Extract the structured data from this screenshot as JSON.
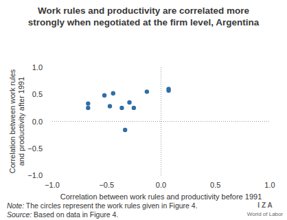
{
  "chart_data": {
    "type": "scatter",
    "title": "Work rules and productivity are correlated more strongly when negotiated at the firm level, Argentina",
    "xlabel": "Correlation between work rules and productivity before 1991",
    "ylabel": "Correlation between work rules and productivity after 1991",
    "x": [
      -0.67,
      -0.67,
      -0.52,
      -0.47,
      -0.44,
      -0.36,
      -0.33,
      -0.29,
      -0.25,
      -0.13,
      0.07,
      0.07
    ],
    "values": [
      0.33,
      0.25,
      0.48,
      0.28,
      0.52,
      0.25,
      -0.16,
      0.35,
      0.25,
      0.55,
      0.6,
      0.57
    ],
    "color": "#2f6ea6",
    "marker": "circle",
    "xlim": [
      -1,
      1
    ],
    "ylim": [
      -1,
      1
    ],
    "xticks": [
      {
        "value": -1,
        "label": "−1.0"
      },
      {
        "value": -0.5,
        "label": "−0.5"
      },
      {
        "value": 0,
        "label": "0.0"
      },
      {
        "value": 0.5,
        "label": "0.5"
      },
      {
        "value": 1,
        "label": "1.0"
      }
    ],
    "yticks": [
      {
        "value": -1,
        "label": "−1.0"
      },
      {
        "value": -0.5,
        "label": "−0.5"
      },
      {
        "value": 0,
        "label": "0.0"
      },
      {
        "value": 0.5,
        "label": "0.5"
      },
      {
        "value": 1,
        "label": "1.0"
      }
    ],
    "grid": false,
    "note": "Note: The circles represent the work rules given in Figure 4.",
    "source": "Source: Based on data in Figure 4.",
    "logo_top": "I Z A",
    "logo_bottom": "World of Labor"
  }
}
